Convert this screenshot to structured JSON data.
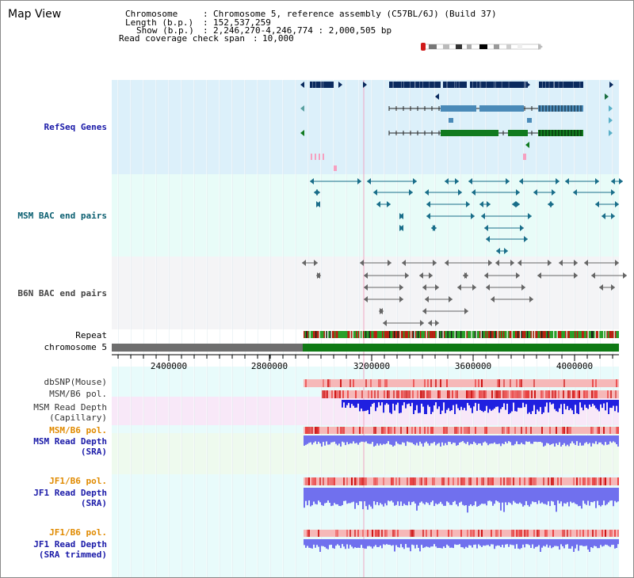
{
  "app": {
    "title": "Map View"
  },
  "header": {
    "chromosome_label": "Chromosome",
    "chromosome_value": "Chromosome 5, reference assembly (C57BL/6J) (Build 37)",
    "length_label": "Length (b.p.)",
    "length_value": "152,537,259",
    "show_label": "Show (b.p.)",
    "show_value": "2,246,270-4,246,774 : 2,000,505 bp",
    "coverage_label": "Read coverage check span",
    "coverage_value": "10,000"
  },
  "axis": {
    "ticks": [
      "2400000",
      "2800000",
      "3200000",
      "3600000",
      "4000000"
    ]
  },
  "tracks": {
    "refseq": "RefSeq Genes",
    "msm_bac": "MSM BAC end pairs",
    "b6n_bac": "B6N BAC end pairs",
    "repeat": "Repeat",
    "chromosome": "chromosome 5",
    "dbsnp": "dbSNP(Mouse)",
    "msm_b6_pol_1": "MSM/B6 pol.",
    "msm_depth_cap_1": "MSM Read Depth",
    "msm_depth_cap_2": "(Capillary)",
    "msm_b6_pol_2": "MSM/B6 pol.",
    "msm_depth_sra_1": "MSM Read Depth",
    "msm_depth_sra_2": "(SRA)",
    "jf1_b6_pol_1": "JF1/B6 pol.",
    "jf1_depth_sra_1": "JF1 Read Depth",
    "jf1_depth_sra_2": "(SRA)",
    "jf1_b6_pol_2": "JF1/B6 pol.",
    "jf1_depth_trim_1": "JF1 Read Depth",
    "jf1_depth_trim_2": "(SRA trimmed)"
  },
  "colors": {
    "refseq_bg": "#dcf0fa",
    "msm_bg": "#e8fcf8",
    "b6n_bg": "#f4f4f6",
    "gene_dark": "#0a2a5e",
    "gene_mid": "#4a8ab8",
    "gene_green": "#117a1f",
    "msm_pair": "#1a6e8a",
    "b6n_pair": "#666666",
    "chrom_gray": "#6e6e6e",
    "chrom_green": "#0f7a14",
    "depth_blue": "#2020e0",
    "depth_light": "#7070ee",
    "pol_red": "#e84040",
    "pol_pink": "#f6b8b8"
  }
}
